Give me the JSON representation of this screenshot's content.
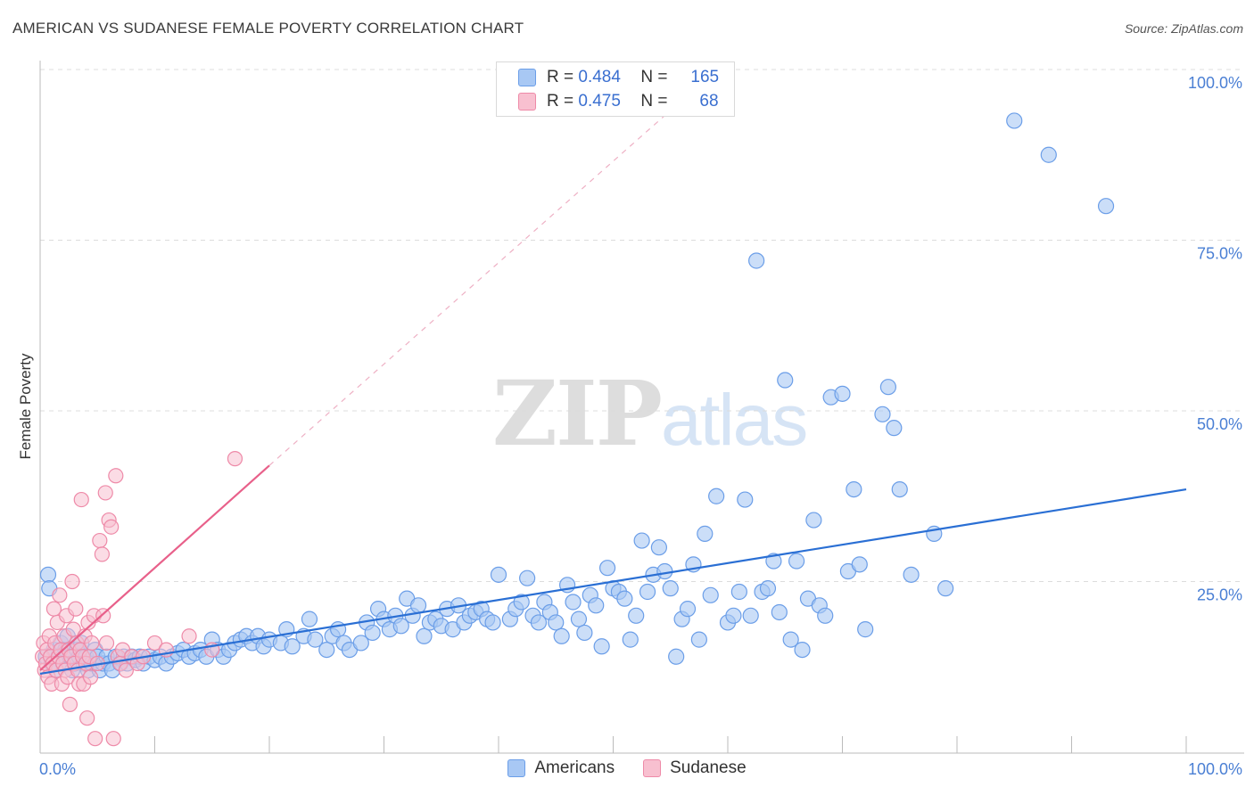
{
  "title": "AMERICAN VS SUDANESE FEMALE POVERTY CORRELATION CHART",
  "source": "Source: ZipAtlas.com",
  "watermark": {
    "zip": "ZIP",
    "atlas": "atlas"
  },
  "legend": {
    "rows": [
      {
        "r_label": "R =",
        "r_value": "0.484",
        "n_label": "N =",
        "n_value": "165",
        "color": "#a8c8f4",
        "border": "#6b9ee8"
      },
      {
        "r_label": "R =",
        "r_value": "0.475",
        "n_label": "N =",
        "n_value": "68",
        "color": "#f8c0d0",
        "border": "#ee8aa8"
      }
    ]
  },
  "bottom_legend": [
    {
      "label": "Americans",
      "color": "#a8c8f4",
      "border": "#6b9ee8"
    },
    {
      "label": "Sudanese",
      "color": "#f8c0d0",
      "border": "#ee8aa8"
    }
  ],
  "chart_data": {
    "type": "scatter",
    "title": "AMERICAN VS SUDANESE FEMALE POVERTY CORRELATION CHART",
    "xlabel": "",
    "ylabel": "Female Poverty",
    "xlim": [
      0,
      1
    ],
    "ylim": [
      0,
      1
    ],
    "x_tick_labels": [
      {
        "value": 0,
        "label": "0.0%"
      },
      {
        "value": 1,
        "label": "100.0%"
      }
    ],
    "y_tick_labels": [
      {
        "value": 0.25,
        "label": "25.0%"
      },
      {
        "value": 0.5,
        "label": "50.0%"
      },
      {
        "value": 0.75,
        "label": "75.0%"
      },
      {
        "value": 1.0,
        "label": "100.0%"
      }
    ],
    "grid": true,
    "series": [
      {
        "name": "Americans",
        "color": "#6b9ee8",
        "fill": "#a8c8f4",
        "trend": {
          "x": [
            0.0,
            1.0
          ],
          "y": [
            0.115,
            0.385
          ],
          "color": "#2a6fd4"
        },
        "points": [
          [
            0.005,
            0.14
          ],
          [
            0.007,
            0.26
          ],
          [
            0.008,
            0.24
          ],
          [
            0.01,
            0.13
          ],
          [
            0.012,
            0.15
          ],
          [
            0.014,
            0.12
          ],
          [
            0.016,
            0.14
          ],
          [
            0.018,
            0.16
          ],
          [
            0.02,
            0.13
          ],
          [
            0.022,
            0.15
          ],
          [
            0.024,
            0.17
          ],
          [
            0.026,
            0.14
          ],
          [
            0.028,
            0.12
          ],
          [
            0.03,
            0.13
          ],
          [
            0.032,
            0.15
          ],
          [
            0.034,
            0.14
          ],
          [
            0.036,
            0.16
          ],
          [
            0.038,
            0.13
          ],
          [
            0.04,
            0.14
          ],
          [
            0.042,
            0.12
          ],
          [
            0.045,
            0.13
          ],
          [
            0.048,
            0.15
          ],
          [
            0.05,
            0.14
          ],
          [
            0.052,
            0.12
          ],
          [
            0.055,
            0.13
          ],
          [
            0.058,
            0.14
          ],
          [
            0.06,
            0.13
          ],
          [
            0.063,
            0.12
          ],
          [
            0.066,
            0.14
          ],
          [
            0.07,
            0.13
          ],
          [
            0.073,
            0.14
          ],
          [
            0.076,
            0.13
          ],
          [
            0.08,
            0.14
          ],
          [
            0.083,
            0.135
          ],
          [
            0.087,
            0.14
          ],
          [
            0.09,
            0.13
          ],
          [
            0.095,
            0.14
          ],
          [
            0.1,
            0.135
          ],
          [
            0.105,
            0.14
          ],
          [
            0.11,
            0.13
          ],
          [
            0.115,
            0.14
          ],
          [
            0.12,
            0.145
          ],
          [
            0.125,
            0.15
          ],
          [
            0.13,
            0.14
          ],
          [
            0.135,
            0.145
          ],
          [
            0.14,
            0.15
          ],
          [
            0.145,
            0.14
          ],
          [
            0.15,
            0.165
          ],
          [
            0.155,
            0.15
          ],
          [
            0.16,
            0.14
          ],
          [
            0.165,
            0.15
          ],
          [
            0.17,
            0.16
          ],
          [
            0.175,
            0.165
          ],
          [
            0.18,
            0.17
          ],
          [
            0.185,
            0.16
          ],
          [
            0.19,
            0.17
          ],
          [
            0.195,
            0.155
          ],
          [
            0.2,
            0.165
          ],
          [
            0.21,
            0.16
          ],
          [
            0.215,
            0.18
          ],
          [
            0.22,
            0.155
          ],
          [
            0.23,
            0.17
          ],
          [
            0.235,
            0.195
          ],
          [
            0.24,
            0.165
          ],
          [
            0.25,
            0.15
          ],
          [
            0.255,
            0.17
          ],
          [
            0.26,
            0.18
          ],
          [
            0.265,
            0.16
          ],
          [
            0.27,
            0.15
          ],
          [
            0.28,
            0.16
          ],
          [
            0.285,
            0.19
          ],
          [
            0.29,
            0.175
          ],
          [
            0.295,
            0.21
          ],
          [
            0.3,
            0.195
          ],
          [
            0.305,
            0.18
          ],
          [
            0.31,
            0.2
          ],
          [
            0.315,
            0.185
          ],
          [
            0.32,
            0.225
          ],
          [
            0.325,
            0.2
          ],
          [
            0.33,
            0.215
          ],
          [
            0.335,
            0.17
          ],
          [
            0.34,
            0.19
          ],
          [
            0.345,
            0.195
          ],
          [
            0.35,
            0.185
          ],
          [
            0.355,
            0.21
          ],
          [
            0.36,
            0.18
          ],
          [
            0.365,
            0.215
          ],
          [
            0.37,
            0.19
          ],
          [
            0.375,
            0.2
          ],
          [
            0.38,
            0.205
          ],
          [
            0.385,
            0.21
          ],
          [
            0.39,
            0.195
          ],
          [
            0.395,
            0.19
          ],
          [
            0.4,
            0.26
          ],
          [
            0.41,
            0.195
          ],
          [
            0.415,
            0.21
          ],
          [
            0.42,
            0.22
          ],
          [
            0.425,
            0.255
          ],
          [
            0.43,
            0.2
          ],
          [
            0.435,
            0.19
          ],
          [
            0.44,
            0.22
          ],
          [
            0.445,
            0.205
          ],
          [
            0.45,
            0.19
          ],
          [
            0.455,
            0.17
          ],
          [
            0.46,
            0.245
          ],
          [
            0.465,
            0.22
          ],
          [
            0.47,
            0.195
          ],
          [
            0.475,
            0.175
          ],
          [
            0.48,
            0.23
          ],
          [
            0.485,
            0.215
          ],
          [
            0.49,
            0.155
          ],
          [
            0.495,
            0.27
          ],
          [
            0.5,
            0.24
          ],
          [
            0.505,
            0.235
          ],
          [
            0.51,
            0.225
          ],
          [
            0.515,
            0.165
          ],
          [
            0.52,
            0.2
          ],
          [
            0.525,
            0.31
          ],
          [
            0.53,
            0.235
          ],
          [
            0.535,
            0.26
          ],
          [
            0.54,
            0.3
          ],
          [
            0.545,
            0.265
          ],
          [
            0.55,
            0.24
          ],
          [
            0.555,
            0.14
          ],
          [
            0.56,
            0.195
          ],
          [
            0.565,
            0.21
          ],
          [
            0.57,
            0.275
          ],
          [
            0.575,
            0.165
          ],
          [
            0.58,
            0.32
          ],
          [
            0.585,
            0.23
          ],
          [
            0.59,
            0.375
          ],
          [
            0.6,
            0.19
          ],
          [
            0.605,
            0.2
          ],
          [
            0.61,
            0.235
          ],
          [
            0.615,
            0.37
          ],
          [
            0.62,
            0.2
          ],
          [
            0.625,
            0.72
          ],
          [
            0.63,
            0.235
          ],
          [
            0.635,
            0.24
          ],
          [
            0.64,
            0.28
          ],
          [
            0.645,
            0.205
          ],
          [
            0.65,
            0.545
          ],
          [
            0.655,
            0.165
          ],
          [
            0.66,
            0.28
          ],
          [
            0.665,
            0.15
          ],
          [
            0.67,
            0.225
          ],
          [
            0.675,
            0.34
          ],
          [
            0.68,
            0.215
          ],
          [
            0.685,
            0.2
          ],
          [
            0.69,
            0.52
          ],
          [
            0.7,
            0.525
          ],
          [
            0.705,
            0.265
          ],
          [
            0.71,
            0.385
          ],
          [
            0.715,
            0.275
          ],
          [
            0.72,
            0.18
          ],
          [
            0.735,
            0.495
          ],
          [
            0.74,
            0.535
          ],
          [
            0.745,
            0.475
          ],
          [
            0.75,
            0.385
          ],
          [
            0.76,
            0.26
          ],
          [
            0.78,
            0.32
          ],
          [
            0.79,
            0.24
          ],
          [
            0.85,
            0.925
          ],
          [
            0.88,
            0.875
          ],
          [
            0.93,
            0.8
          ]
        ]
      },
      {
        "name": "Sudanese",
        "color": "#ee8aa8",
        "fill": "#f8c0d0",
        "trend": {
          "x": [
            0.0,
            0.2
          ],
          "y": [
            0.12,
            0.42
          ],
          "color": "#e8608a",
          "dashed_extension_to": [
            0.55,
            0.94
          ]
        },
        "points": [
          [
            0.002,
            0.14
          ],
          [
            0.003,
            0.16
          ],
          [
            0.004,
            0.12
          ],
          [
            0.005,
            0.13
          ],
          [
            0.006,
            0.15
          ],
          [
            0.007,
            0.11
          ],
          [
            0.008,
            0.17
          ],
          [
            0.009,
            0.14
          ],
          [
            0.01,
            0.1
          ],
          [
            0.011,
            0.13
          ],
          [
            0.012,
            0.21
          ],
          [
            0.013,
            0.16
          ],
          [
            0.014,
            0.12
          ],
          [
            0.015,
            0.19
          ],
          [
            0.016,
            0.14
          ],
          [
            0.017,
            0.23
          ],
          [
            0.018,
            0.15
          ],
          [
            0.019,
            0.1
          ],
          [
            0.02,
            0.13
          ],
          [
            0.021,
            0.17
          ],
          [
            0.022,
            0.12
          ],
          [
            0.023,
            0.2
          ],
          [
            0.024,
            0.11
          ],
          [
            0.025,
            0.15
          ],
          [
            0.026,
            0.07
          ],
          [
            0.027,
            0.14
          ],
          [
            0.028,
            0.25
          ],
          [
            0.029,
            0.18
          ],
          [
            0.03,
            0.13
          ],
          [
            0.031,
            0.21
          ],
          [
            0.032,
            0.16
          ],
          [
            0.033,
            0.12
          ],
          [
            0.034,
            0.1
          ],
          [
            0.035,
            0.15
          ],
          [
            0.036,
            0.37
          ],
          [
            0.037,
            0.14
          ],
          [
            0.038,
            0.1
          ],
          [
            0.039,
            0.17
          ],
          [
            0.04,
            0.13
          ],
          [
            0.041,
            0.05
          ],
          [
            0.042,
            0.19
          ],
          [
            0.043,
            0.14
          ],
          [
            0.044,
            0.11
          ],
          [
            0.045,
            0.16
          ],
          [
            0.047,
            0.2
          ],
          [
            0.048,
            0.02
          ],
          [
            0.05,
            0.13
          ],
          [
            0.052,
            0.31
          ],
          [
            0.054,
            0.29
          ],
          [
            0.055,
            0.2
          ],
          [
            0.057,
            0.38
          ],
          [
            0.058,
            0.16
          ],
          [
            0.06,
            0.34
          ],
          [
            0.062,
            0.33
          ],
          [
            0.064,
            0.02
          ],
          [
            0.066,
            0.405
          ],
          [
            0.068,
            0.14
          ],
          [
            0.07,
            0.13
          ],
          [
            0.072,
            0.15
          ],
          [
            0.075,
            0.12
          ],
          [
            0.08,
            0.14
          ],
          [
            0.085,
            0.13
          ],
          [
            0.09,
            0.14
          ],
          [
            0.1,
            0.16
          ],
          [
            0.11,
            0.15
          ],
          [
            0.13,
            0.17
          ],
          [
            0.15,
            0.15
          ],
          [
            0.17,
            0.43
          ]
        ]
      }
    ]
  }
}
